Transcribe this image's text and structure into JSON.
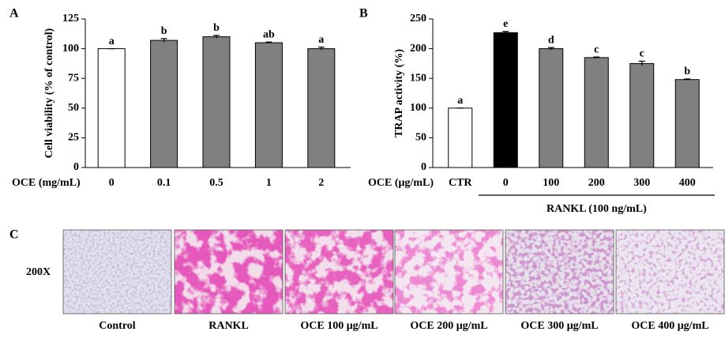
{
  "chart_data": [
    {
      "type": "bar",
      "panel_label": "A",
      "y_label": "Cell viability  (% of control)",
      "x_label": "OCE  (mg/mL)",
      "categories": [
        "0",
        "0.1",
        "0.5",
        "1",
        "2"
      ],
      "values": [
        100,
        107,
        110,
        105,
        100
      ],
      "errors": [
        0,
        1.5,
        1.2,
        0.6,
        1.3
      ],
      "letters": [
        "a",
        "b",
        "b",
        "ab",
        "a"
      ],
      "colors": [
        "#ffffff",
        "#808080",
        "#808080",
        "#808080",
        "#808080"
      ],
      "ylim": [
        0,
        125
      ],
      "yticks": [
        0,
        25,
        50,
        75,
        100,
        125
      ]
    },
    {
      "type": "bar",
      "panel_label": "B",
      "y_label": "TRAP activity (%)",
      "x_label": "OCE  (μg/mL)",
      "categories": [
        "CTR",
        "0",
        "100",
        "200",
        "300",
        "400"
      ],
      "values": [
        100,
        227,
        200,
        185,
        175,
        148
      ],
      "errors": [
        0,
        2,
        2,
        1,
        4,
        1
      ],
      "letters": [
        "a",
        "e",
        "d",
        "c",
        "c",
        "b"
      ],
      "colors": [
        "#ffffff",
        "#000000",
        "#808080",
        "#808080",
        "#808080",
        "#808080"
      ],
      "group_label": "RANKL (100 ng/mL)",
      "ylim": [
        0,
        250
      ],
      "yticks": [
        0,
        50,
        100,
        150,
        200,
        250
      ]
    }
  ],
  "image_panel": {
    "panel_label": "C",
    "magnification": "200X",
    "captions": [
      "Control",
      "RANKL",
      "OCE 100 μg/mL",
      "OCE 200 μg/mL",
      "OCE 300 μg/mL",
      "OCE 400 μg/mL"
    ]
  }
}
